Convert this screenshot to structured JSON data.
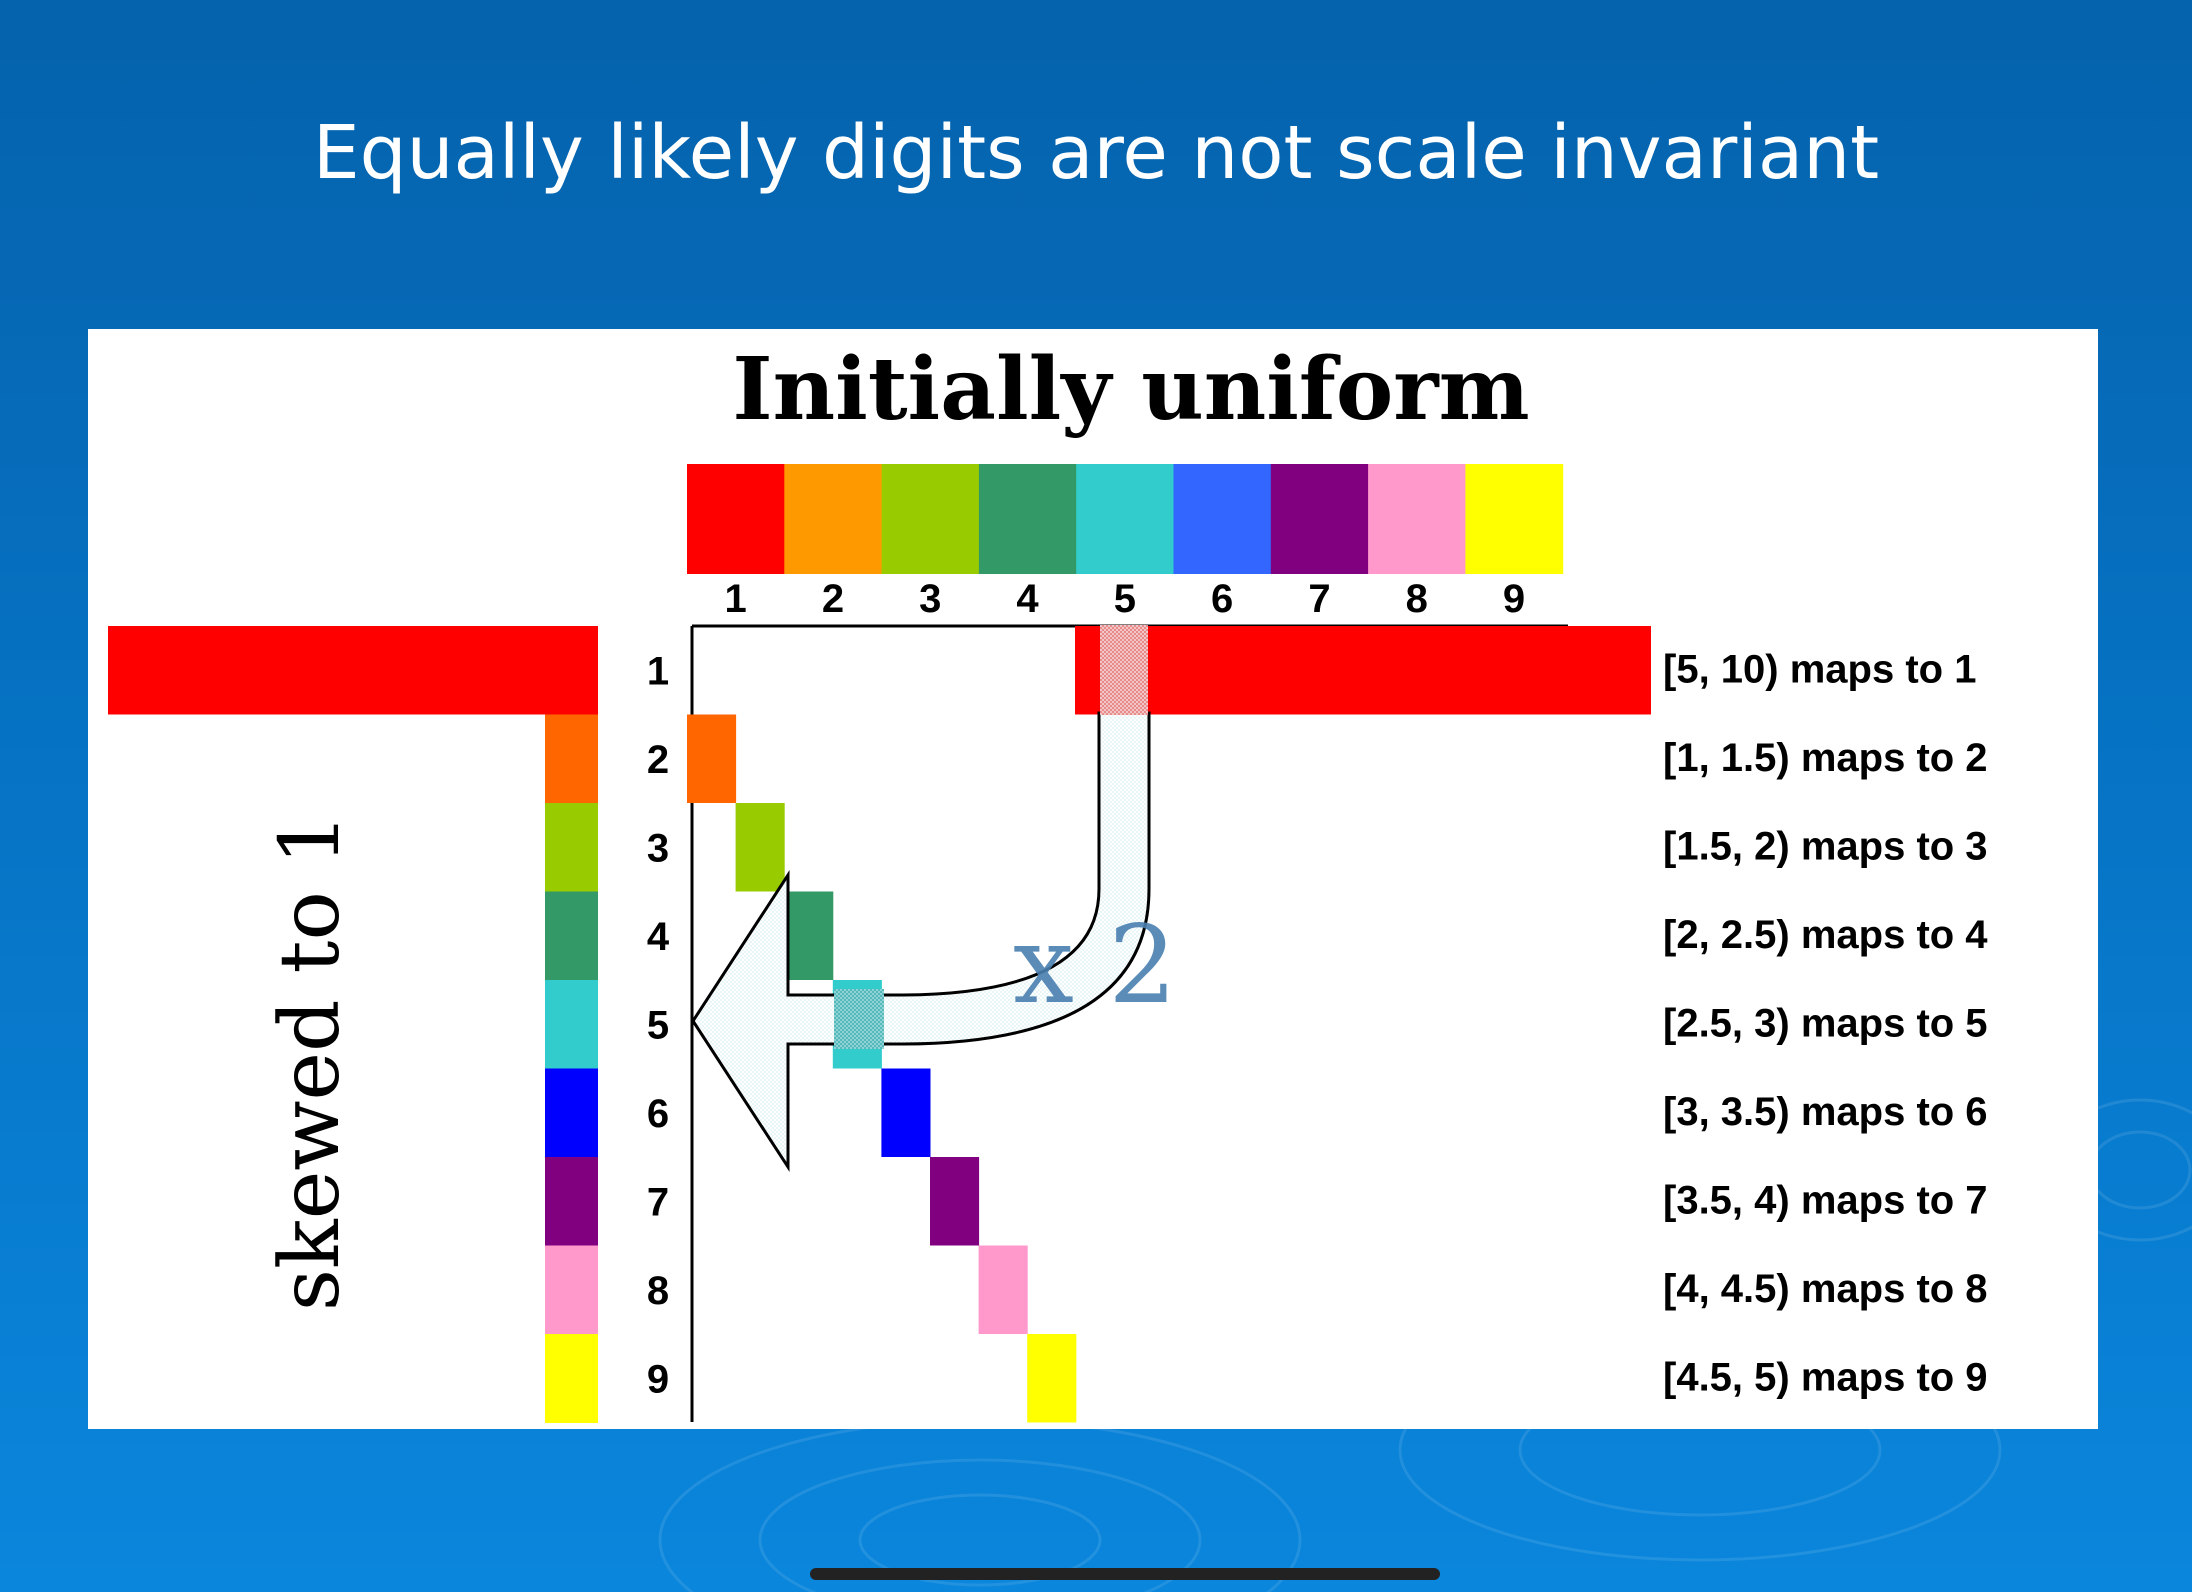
{
  "slide": {
    "title": "Equally likely digits are not scale invariant",
    "background_color": "#0670c0"
  },
  "figure": {
    "title": "Initially uniform",
    "side_label": "skewed to 1",
    "multiplier_label": "x 2",
    "digits": [
      "1",
      "2",
      "3",
      "4",
      "5",
      "6",
      "7",
      "8",
      "9"
    ],
    "digit_colors": [
      "#ff0000",
      "#ff9900",
      "#99cc00",
      "#339966",
      "#33cccc",
      "#3366ff",
      "#800080",
      "#ff99cc",
      "#ffff00"
    ],
    "mapped_colors": [
      "#ff0000",
      "#ff6600",
      "#99cc00",
      "#339966",
      "#33cccc",
      "#0000ff",
      "#800080",
      "#ff99cc",
      "#ffff00"
    ],
    "mappings": [
      "[5, 10) maps to 1",
      "[1, 1.5) maps to 2",
      "[1.5, 2) maps to 3",
      "[2, 2.5) maps to 4",
      "[2.5, 3) maps to 5",
      "[3, 3.5) maps to 6",
      "[3.5, 4) maps to 7",
      "[4, 4.5) maps to 8",
      "[4.5, 5) maps to 9"
    ]
  }
}
